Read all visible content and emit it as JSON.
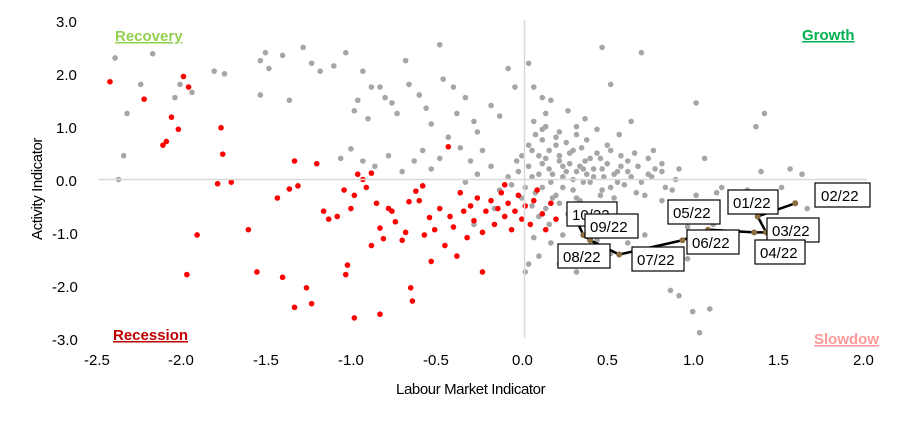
{
  "chart_data": {
    "type": "scatter",
    "title": "",
    "xlabel": "Labour Market Indicator",
    "ylabel": "Activity  Indicator",
    "xlim": [
      -2.5,
      2.0
    ],
    "ylim": [
      -3.0,
      3.0
    ],
    "x_ticks": [
      "-2.5",
      "-2.0",
      "-1.5",
      "-1.0",
      "-0.5",
      "0.0",
      "0.5",
      "1.0",
      "1.5",
      "2.0"
    ],
    "y_ticks": [
      "3.0",
      "2.0",
      "1.0",
      "0.0",
      "-1.0",
      "-2.0",
      "-3.0"
    ],
    "grid": false,
    "quadrant_labels": {
      "recovery": {
        "text": "Recovery",
        "color": "#92d050"
      },
      "growth": {
        "text": "Growth",
        "color": "#00b050"
      },
      "recession": {
        "text": "Recession",
        "color": "#c00000"
      },
      "slowdown": {
        "text": "Slowdow",
        "color": "#ff9999"
      }
    },
    "colors": {
      "history": "#a6a6a6",
      "recession_points": "#ff0000",
      "path": "#000000"
    },
    "recession_points": [
      [
        -2.43,
        1.85
      ],
      [
        -2.23,
        1.52
      ],
      [
        -2.07,
        1.18
      ],
      [
        -2.0,
        1.95
      ],
      [
        -1.97,
        1.75
      ],
      [
        -2.03,
        0.95
      ],
      [
        -2.12,
        0.65
      ],
      [
        -2.1,
        0.72
      ],
      [
        -1.78,
        0.98
      ],
      [
        -1.77,
        0.48
      ],
      [
        -1.8,
        -0.08
      ],
      [
        -1.72,
        -0.05
      ],
      [
        -1.92,
        -1.05
      ],
      [
        -1.98,
        -1.8
      ],
      [
        -1.62,
        -0.95
      ],
      [
        -1.57,
        -1.75
      ],
      [
        -1.42,
        -1.85
      ],
      [
        -1.45,
        -0.35
      ],
      [
        -1.38,
        -0.18
      ],
      [
        -1.33,
        -0.12
      ],
      [
        -1.35,
        0.35
      ],
      [
        -1.22,
        0.3
      ],
      [
        -1.18,
        -0.6
      ],
      [
        -1.15,
        -0.75
      ],
      [
        -1.1,
        -0.7
      ],
      [
        -1.28,
        -2.05
      ],
      [
        -1.25,
        -2.35
      ],
      [
        -1.35,
        -2.42
      ],
      [
        -1.05,
        -1.8
      ],
      [
        -1.04,
        -1.62
      ],
      [
        -1.0,
        -2.62
      ],
      [
        -0.85,
        -2.55
      ],
      [
        -1.06,
        -0.2
      ],
      [
        -1.02,
        -0.55
      ],
      [
        -1.0,
        -0.3
      ],
      [
        -0.98,
        0.1
      ],
      [
        -0.95,
        -0.0
      ],
      [
        -0.93,
        -0.15
      ],
      [
        -0.9,
        0.12
      ],
      [
        -0.87,
        -0.45
      ],
      [
        -0.85,
        -0.92
      ],
      [
        -0.83,
        -1.12
      ],
      [
        -0.8,
        -0.55
      ],
      [
        -0.76,
        -0.8
      ],
      [
        -0.72,
        -1.15
      ],
      [
        -0.7,
        -1.0
      ],
      [
        -0.68,
        -0.42
      ],
      [
        -0.67,
        -2.05
      ],
      [
        -0.66,
        -2.3
      ],
      [
        -0.64,
        -0.22
      ],
      [
        -0.62,
        -0.4
      ],
      [
        -0.59,
        -1.05
      ],
      [
        -0.56,
        -0.72
      ],
      [
        -0.53,
        -0.95
      ],
      [
        -0.5,
        -0.55
      ],
      [
        -0.47,
        -1.25
      ],
      [
        -0.44,
        -0.7
      ],
      [
        -0.42,
        -0.9
      ],
      [
        -0.4,
        -1.45
      ],
      [
        -0.38,
        -0.25
      ],
      [
        -0.36,
        -0.6
      ],
      [
        -0.34,
        -1.1
      ],
      [
        -0.32,
        -0.5
      ],
      [
        -0.3,
        -0.78
      ],
      [
        -0.28,
        -0.35
      ],
      [
        -0.25,
        -1.0
      ],
      [
        -0.23,
        -0.6
      ],
      [
        -0.2,
        -0.4
      ],
      [
        -0.18,
        -0.85
      ],
      [
        -0.16,
        -0.55
      ],
      [
        -0.14,
        -0.25
      ],
      [
        -0.12,
        -0.7
      ],
      [
        -0.1,
        -0.45
      ],
      [
        -0.08,
        -0.95
      ],
      [
        -0.06,
        -0.6
      ],
      [
        -0.04,
        -0.3
      ],
      [
        -0.02,
        -0.75
      ],
      [
        0.0,
        -0.5
      ],
      [
        0.03,
        -0.85
      ],
      [
        0.05,
        -0.4
      ],
      [
        0.07,
        -0.2
      ],
      [
        0.1,
        -0.65
      ],
      [
        0.12,
        -0.95
      ],
      [
        0.15,
        -0.45
      ],
      [
        0.18,
        -0.75
      ],
      [
        -0.45,
        0.62
      ],
      [
        -0.6,
        -0.12
      ],
      [
        -0.78,
        -0.6
      ],
      [
        -0.9,
        -1.25
      ],
      [
        -0.55,
        -1.55
      ],
      [
        -0.25,
        -1.75
      ],
      [
        -0.12,
        -0.1
      ]
    ],
    "history_points": [
      [
        -2.4,
        2.3
      ],
      [
        -2.35,
        0.45
      ],
      [
        -2.38,
        0.0
      ],
      [
        -2.33,
        1.25
      ],
      [
        -2.25,
        1.8
      ],
      [
        -2.18,
        2.38
      ],
      [
        -2.05,
        1.55
      ],
      [
        -2.02,
        1.8
      ],
      [
        -1.95,
        1.65
      ],
      [
        -1.82,
        2.05
      ],
      [
        -1.76,
        2.0
      ],
      [
        -1.55,
        2.25
      ],
      [
        -1.52,
        2.4
      ],
      [
        -1.5,
        2.1
      ],
      [
        -1.55,
        1.6
      ],
      [
        -1.42,
        2.35
      ],
      [
        -1.38,
        1.5
      ],
      [
        -1.3,
        2.5
      ],
      [
        -1.25,
        2.2
      ],
      [
        -1.2,
        2.05
      ],
      [
        -1.12,
        2.15
      ],
      [
        -1.05,
        2.4
      ],
      [
        -0.95,
        2.05
      ],
      [
        -0.9,
        1.75
      ],
      [
        -0.98,
        1.5
      ],
      [
        -1.0,
        1.3
      ],
      [
        -0.92,
        1.15
      ],
      [
        -0.85,
        1.75
      ],
      [
        -0.82,
        1.55
      ],
      [
        -0.78,
        1.45
      ],
      [
        -0.75,
        1.25
      ],
      [
        -0.7,
        2.25
      ],
      [
        -0.68,
        1.8
      ],
      [
        -0.62,
        1.6
      ],
      [
        -0.58,
        1.35
      ],
      [
        -0.55,
        1.05
      ],
      [
        -0.5,
        2.55
      ],
      [
        -0.48,
        1.9
      ],
      [
        -0.42,
        1.75
      ],
      [
        -0.4,
        1.25
      ],
      [
        -0.35,
        1.55
      ],
      [
        -0.3,
        1.1
      ],
      [
        -0.28,
        0.9
      ],
      [
        -0.2,
        1.4
      ],
      [
        -0.15,
        1.2
      ],
      [
        -0.1,
        2.1
      ],
      [
        -0.06,
        1.75
      ],
      [
        -0.25,
        0.55
      ],
      [
        -0.32,
        0.35
      ],
      [
        -0.38,
        0.6
      ],
      [
        -0.45,
        0.8
      ],
      [
        -0.5,
        0.4
      ],
      [
        -0.55,
        0.2
      ],
      [
        -0.6,
        0.55
      ],
      [
        -0.65,
        0.35
      ],
      [
        -0.72,
        0.15
      ],
      [
        -0.8,
        0.45
      ],
      [
        -0.88,
        0.25
      ],
      [
        -0.95,
        0.35
      ],
      [
        -1.02,
        0.58
      ],
      [
        -1.08,
        0.4
      ],
      [
        0.02,
        2.2
      ],
      [
        0.05,
        1.75
      ],
      [
        0.1,
        1.55
      ],
      [
        0.12,
        1.25
      ],
      [
        0.15,
        1.5
      ],
      [
        0.1,
        0.95
      ],
      [
        0.05,
        1.1
      ],
      [
        0.2,
        0.9
      ],
      [
        0.25,
        1.3
      ],
      [
        0.3,
        1.0
      ],
      [
        0.35,
        1.15
      ],
      [
        0.42,
        0.95
      ],
      [
        0.45,
        2.5
      ],
      [
        0.5,
        1.8
      ],
      [
        0.55,
        0.85
      ],
      [
        0.62,
        1.1
      ],
      [
        0.68,
        2.4
      ],
      [
        0.75,
        0.55
      ],
      [
        0.8,
        0.3
      ],
      [
        0.88,
        0.0
      ],
      [
        1.0,
        1.45
      ],
      [
        1.05,
        0.4
      ],
      [
        1.12,
        -0.25
      ],
      [
        1.2,
        -0.4
      ],
      [
        1.3,
        -0.2
      ],
      [
        1.35,
        1.0
      ],
      [
        1.4,
        1.25
      ],
      [
        1.38,
        0.15
      ],
      [
        1.5,
        -0.15
      ],
      [
        1.55,
        0.2
      ],
      [
        1.62,
        0.1
      ],
      [
        1.65,
        -0.55
      ],
      [
        0.95,
        -1.5
      ],
      [
        0.85,
        -2.1
      ],
      [
        0.9,
        -2.2
      ],
      [
        0.98,
        -2.5
      ],
      [
        1.02,
        -2.9
      ],
      [
        1.08,
        -2.45
      ],
      [
        0.75,
        -1.35
      ],
      [
        0.7,
        -1.05
      ],
      [
        0.65,
        -1.55
      ],
      [
        0.6,
        -1.2
      ],
      [
        0.55,
        -0.9
      ],
      [
        0.5,
        -1.4
      ],
      [
        0.42,
        -1.15
      ],
      [
        0.38,
        -0.8
      ],
      [
        0.3,
        -1.75
      ],
      [
        0.25,
        -1.45
      ],
      [
        0.2,
        -1.6
      ],
      [
        0.22,
        -1.05
      ],
      [
        0.15,
        -1.2
      ],
      [
        0.08,
        -1.45
      ],
      [
        0.02,
        -1.6
      ],
      [
        0.0,
        -1.75
      ],
      [
        0.05,
        -1.1
      ],
      [
        0.12,
        -0.55
      ],
      [
        0.18,
        -0.3
      ],
      [
        0.25,
        -0.65
      ],
      [
        0.32,
        -0.4
      ],
      [
        0.4,
        -0.55
      ],
      [
        0.45,
        -0.2
      ],
      [
        0.52,
        -0.35
      ],
      [
        0.58,
        -0.1
      ],
      [
        0.65,
        -0.25
      ],
      [
        0.72,
        0.1
      ],
      [
        0.8,
        -0.4
      ],
      [
        0.88,
        -0.65
      ],
      [
        0.95,
        -0.9
      ],
      [
        1.0,
        -0.3
      ],
      [
        1.05,
        -0.6
      ],
      [
        1.1,
        -0.85
      ],
      [
        1.15,
        -0.15
      ],
      [
        0.35,
        0.35
      ],
      [
        0.28,
        0.55
      ],
      [
        0.22,
        0.25
      ],
      [
        0.18,
        0.65
      ],
      [
        0.12,
        0.4
      ],
      [
        0.08,
        0.1
      ],
      [
        0.04,
        0.55
      ],
      [
        0.02,
        0.25
      ],
      [
        0.15,
        -0.05
      ],
      [
        0.22,
        0.05
      ],
      [
        0.3,
        0.15
      ],
      [
        0.38,
        -0.05
      ],
      [
        0.45,
        0.2
      ],
      [
        0.52,
        0.1
      ],
      [
        0.6,
        0.35
      ],
      [
        0.68,
        -0.05
      ],
      [
        0.42,
        0.5
      ],
      [
        0.48,
        0.65
      ],
      [
        0.1,
        0.75
      ],
      [
        -0.05,
        0.35
      ],
      [
        -0.1,
        0.05
      ],
      [
        -0.15,
        -0.2
      ],
      [
        -0.02,
        -0.35
      ],
      [
        0.06,
        -0.25
      ],
      [
        0.14,
        0.2
      ],
      [
        0.2,
        0.45
      ],
      [
        0.26,
        0.3
      ],
      [
        0.33,
        0.6
      ],
      [
        0.4,
        0.2
      ],
      [
        0.5,
        -0.15
      ],
      [
        0.56,
        0.45
      ],
      [
        0.62,
        0.05
      ],
      [
        0.7,
        -0.3
      ],
      [
        0.76,
        0.2
      ],
      [
        0.82,
        -0.15
      ],
      [
        0.9,
        0.2
      ],
      [
        0.96,
        -0.45
      ],
      [
        0.06,
        0.85
      ],
      [
        0.12,
        1.0
      ],
      [
        0.18,
        0.8
      ],
      [
        0.24,
        0.7
      ],
      [
        0.3,
        0.85
      ],
      [
        0.36,
        0.75
      ],
      [
        0.44,
        0.4
      ],
      [
        0.5,
        0.55
      ],
      [
        0.56,
        0.25
      ],
      [
        0.64,
        0.5
      ],
      [
        0.72,
        0.4
      ],
      [
        0.04,
        -0.5
      ],
      [
        0.08,
        -0.7
      ],
      [
        0.14,
        -0.85
      ],
      [
        0.2,
        -0.45
      ],
      [
        0.28,
        -0.2
      ],
      [
        0.34,
        -0.05
      ],
      [
        0.16,
        0.1
      ],
      [
        0.1,
        0.3
      ],
      [
        0.24,
        0.15
      ],
      [
        0.3,
        -0.35
      ],
      [
        0.36,
        0.1
      ],
      [
        0.44,
        -0.3
      ],
      [
        0.02,
        0.65
      ],
      [
        0.08,
        0.45
      ],
      [
        0.14,
        0.55
      ],
      [
        0.2,
        0.35
      ],
      [
        0.26,
        0.5
      ],
      [
        0.32,
        0.25
      ],
      [
        0.38,
        0.4
      ],
      [
        0.46,
        0.05
      ],
      [
        0.54,
        -0.05
      ],
      [
        0.6,
        0.15
      ],
      [
        0.66,
        0.25
      ],
      [
        0.74,
        0.05
      ],
      [
        0.8,
        0.15
      ],
      [
        0.86,
        -0.2
      ],
      [
        -0.04,
        0.15
      ],
      [
        -0.08,
        -0.1
      ],
      [
        -0.02,
        0.45
      ],
      [
        0.0,
        -0.15
      ],
      [
        0.04,
        0.05
      ],
      [
        0.1,
        -0.15
      ],
      [
        0.16,
        -0.35
      ],
      [
        0.22,
        -0.15
      ],
      [
        0.28,
        0.0
      ],
      [
        0.34,
        0.2
      ],
      [
        0.4,
        0.05
      ],
      [
        0.48,
        0.3
      ],
      [
        0.54,
        0.15
      ],
      [
        -0.2,
        0.25
      ],
      [
        -0.28,
        0.1
      ],
      [
        -0.35,
        -0.05
      ],
      [
        -0.18,
        -0.55
      ],
      [
        -0.3,
        -0.85
      ]
    ],
    "path": {
      "labels": [
        "02/22",
        "01/22",
        "03/22",
        "04/22",
        "05/22",
        "06/22",
        "07/22",
        "08/22",
        "09/22",
        "10/22"
      ],
      "x": [
        1.58,
        1.36,
        1.41,
        1.34,
        1.07,
        0.92,
        0.55,
        0.38,
        0.34,
        0.29
      ],
      "y": [
        -0.45,
        -0.7,
        -1.0,
        -1.0,
        -0.95,
        -1.15,
        -1.42,
        -1.15,
        -1.05,
        -0.7
      ],
      "label_text": {
        "d0222": "02/22",
        "d0122": "01/22",
        "d0322": "03/22",
        "d0422": "04/22",
        "d0522": "05/22",
        "d0622": "06/22",
        "d0722": "07/22",
        "d0822": "08/22",
        "d0922": "09/22",
        "d1022": "10/22"
      }
    }
  }
}
